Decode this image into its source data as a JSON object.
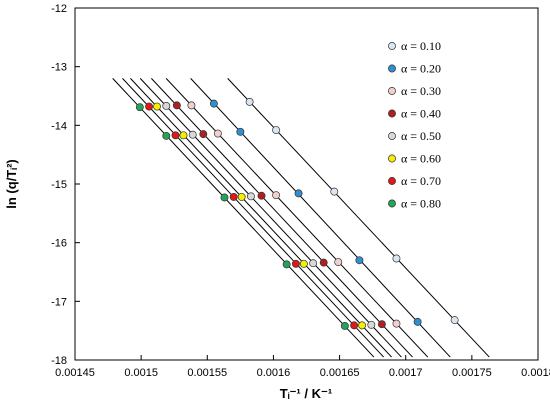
{
  "chart_data": {
    "type": "scatter",
    "title": "",
    "xlabel": "Tᵢ⁻¹ / K⁻¹",
    "ylabel": "ln (q/Tᵢ²)",
    "xlim": [
      0.00145,
      0.0018
    ],
    "ylim": [
      -18,
      -12
    ],
    "x_ticks": [
      "0.00145",
      "0.0015",
      "0.00155",
      "0.0016",
      "0.00165",
      "0.0017",
      "0.00175",
      "0.0018"
    ],
    "y_ticks": [
      "-12",
      "-13",
      "-14",
      "-15",
      "-16",
      "-17",
      "-18"
    ],
    "y_levels": [
      -13.6,
      -14.1,
      -15.15,
      -16.3,
      -17.35
    ],
    "legend_position": "top-right",
    "series": [
      {
        "name": "α = 0.10",
        "color": "#dce6f2",
        "x": [
          0.001582,
          0.001602,
          0.001646,
          0.001693,
          0.001737
        ],
        "y": [
          -13.6,
          -14.08,
          -15.13,
          -16.27,
          -17.32
        ]
      },
      {
        "name": "α = 0.20",
        "color": "#2f8fd0",
        "x": [
          0.001555,
          0.001575,
          0.001619,
          0.001665,
          0.001709
        ],
        "y": [
          -13.63,
          -14.11,
          -15.16,
          -16.3,
          -17.35
        ]
      },
      {
        "name": "α = 0.30",
        "color": "#f2d0d0",
        "x": [
          0.001538,
          0.001558,
          0.001602,
          0.001649,
          0.001693
        ],
        "y": [
          -13.66,
          -14.14,
          -15.19,
          -16.33,
          -17.38
        ]
      },
      {
        "name": "α = 0.40",
        "color": "#b02020",
        "x": [
          0.001527,
          0.001547,
          0.001591,
          0.001638,
          0.001682
        ],
        "y": [
          -13.66,
          -14.15,
          -15.2,
          -16.34,
          -17.39
        ]
      },
      {
        "name": "α = 0.50",
        "color": "#d8d8d8",
        "x": [
          0.001519,
          0.001539,
          0.001583,
          0.00163,
          0.001674
        ],
        "y": [
          -13.67,
          -14.16,
          -15.21,
          -16.35,
          -17.4
        ]
      },
      {
        "name": "α = 0.60",
        "color": "#f5f000",
        "x": [
          0.001512,
          0.001532,
          0.001576,
          0.001623,
          0.001667
        ],
        "y": [
          -13.68,
          -14.17,
          -15.22,
          -16.36,
          -17.41
        ]
      },
      {
        "name": "α = 0.70",
        "color": "#e01818",
        "x": [
          0.001506,
          0.001526,
          0.00157,
          0.001617,
          0.001661
        ],
        "y": [
          -13.68,
          -14.17,
          -15.22,
          -16.36,
          -17.41
        ]
      },
      {
        "name": "α = 0.80",
        "color": "#22a55a",
        "x": [
          0.001499,
          0.001519,
          0.001563,
          0.00161,
          0.001654
        ],
        "y": [
          -13.69,
          -14.18,
          -15.23,
          -16.37,
          -17.42
        ]
      }
    ]
  }
}
